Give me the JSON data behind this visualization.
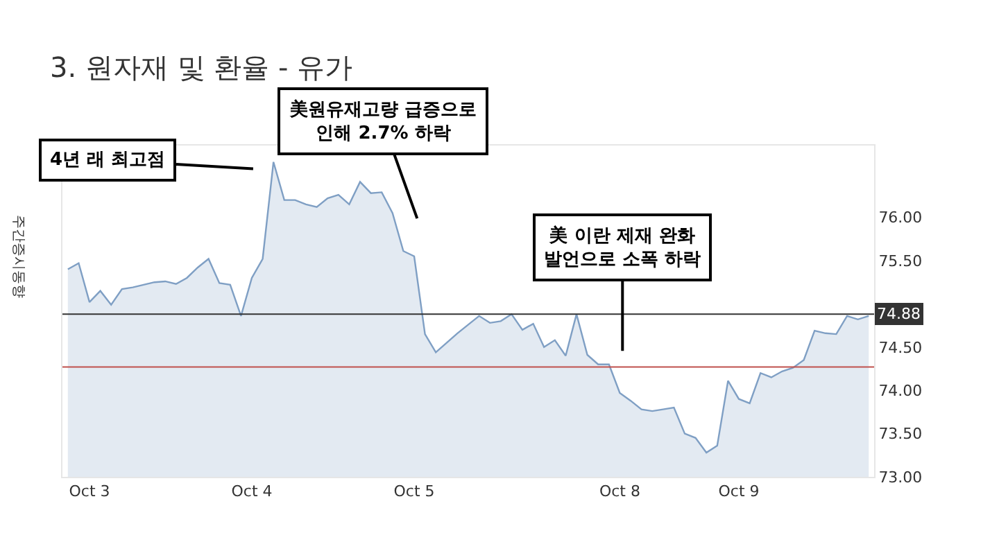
{
  "chart_data": {
    "type": "area",
    "title": "3. 원자재 및 환율 - 유가",
    "categories": [
      null,
      null,
      "Oct 3",
      null,
      null,
      null,
      null,
      null,
      null,
      null,
      null,
      null,
      null,
      null,
      null,
      null,
      null,
      "Oct 4",
      null,
      null,
      null,
      null,
      null,
      null,
      null,
      null,
      null,
      null,
      null,
      null,
      null,
      null,
      "Oct 5",
      null,
      null,
      null,
      null,
      null,
      null,
      null,
      null,
      null,
      null,
      null,
      null,
      null,
      null,
      null,
      null,
      null,
      null,
      "Oct 8",
      null,
      null,
      null,
      null,
      null,
      null,
      null,
      null,
      null,
      null,
      "Oct 9",
      null,
      null,
      null,
      null,
      null,
      null,
      null,
      null,
      null,
      null,
      null,
      null
    ],
    "series": [
      {
        "color": "#7f9fc4",
        "values": [
          75.4,
          75.47,
          75.02,
          75.15,
          74.99,
          75.17,
          75.19,
          75.22,
          75.25,
          75.26,
          75.23,
          75.3,
          75.42,
          75.52,
          75.24,
          75.22,
          74.86,
          75.3,
          75.52,
          76.64,
          76.2,
          76.2,
          76.15,
          76.12,
          76.22,
          76.26,
          76.15,
          76.41,
          76.28,
          76.29,
          76.05,
          75.61,
          75.55,
          74.65,
          74.44,
          74.55,
          74.66,
          74.76,
          74.86,
          74.78,
          74.8,
          74.88,
          74.7,
          74.77,
          74.5,
          74.58,
          74.4,
          74.88,
          74.41,
          74.3,
          74.3,
          73.97,
          73.88,
          73.78,
          73.76,
          73.78,
          73.8,
          73.5,
          73.45,
          73.28,
          73.36,
          74.11,
          73.9,
          73.85,
          74.2,
          74.15,
          74.22,
          74.26,
          74.35,
          74.69,
          74.66,
          74.65,
          74.86,
          74.82,
          74.86
        ]
      }
    ],
    "ylim": [
      73,
      76.83
    ],
    "yticks": [
      {
        "value": 73,
        "label": "73.00"
      },
      {
        "value": 73.5,
        "label": "73.50"
      },
      {
        "value": 74,
        "label": "74.00"
      },
      {
        "value": 74.5,
        "label": "74.50"
      },
      {
        "value": 75.5,
        "label": "75.50"
      },
      {
        "value": 76,
        "label": "76.00"
      }
    ],
    "ref_lines": [
      {
        "axis": "y",
        "value": 74.88,
        "label": "74.88",
        "color": "#333333"
      },
      {
        "axis": "y",
        "value": 74.27,
        "color": "#c0504d"
      }
    ],
    "annotations": [
      "4년 래 최고점",
      "美원유재고량 급증으로\n인해 2.7% 하락",
      "美 이란 제재 완화\n발언으로 소폭 하락",
      "주간증시동향"
    ]
  }
}
